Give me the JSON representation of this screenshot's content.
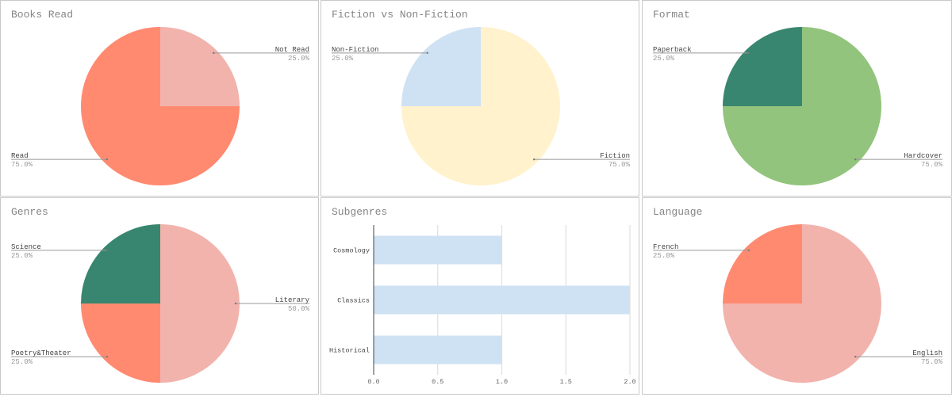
{
  "colors": {
    "salmon": "#ff8a70",
    "pink": "#f2b3ad",
    "blue": "#cfe2f3",
    "cream": "#fff2cc",
    "green": "#93c47d",
    "teal": "#38866f"
  },
  "chart_data": [
    {
      "type": "pie",
      "title": "Books Read",
      "slices": [
        {
          "label": "Not Read",
          "value": 25.0,
          "pct": "25.0%",
          "color": "#f2b3ad"
        },
        {
          "label": "Read",
          "value": 75.0,
          "pct": "75.0%",
          "color": "#ff8a70"
        }
      ]
    },
    {
      "type": "pie",
      "title": "Fiction vs Non-Fiction",
      "slices": [
        {
          "label": "Fiction",
          "value": 75.0,
          "pct": "75.0%",
          "color": "#fff2cc"
        },
        {
          "label": "Non-Fiction",
          "value": 25.0,
          "pct": "25.0%",
          "color": "#cfe2f3"
        }
      ]
    },
    {
      "type": "pie",
      "title": "Format",
      "slices": [
        {
          "label": "Hardcover",
          "value": 75.0,
          "pct": "75.0%",
          "color": "#93c47d"
        },
        {
          "label": "Paperback",
          "value": 25.0,
          "pct": "25.0%",
          "color": "#38866f"
        }
      ]
    },
    {
      "type": "pie",
      "title": "Genres",
      "slices": [
        {
          "label": "Literary",
          "value": 50.0,
          "pct": "50.0%",
          "color": "#f2b3ad"
        },
        {
          "label": "Poetry&Theater",
          "value": 25.0,
          "pct": "25.0%",
          "color": "#ff8a70"
        },
        {
          "label": "Science",
          "value": 25.0,
          "pct": "25.0%",
          "color": "#38866f"
        }
      ]
    },
    {
      "type": "bar",
      "orientation": "horizontal",
      "title": "Subgenres",
      "categories": [
        "Cosmology",
        "Classics",
        "Historical"
      ],
      "values": [
        1,
        2,
        1
      ],
      "xlim": [
        0,
        2
      ],
      "xticks": [
        "0.0",
        "0.5",
        "1.0",
        "1.5",
        "2.0"
      ],
      "color": "#cfe2f3",
      "grid": true
    },
    {
      "type": "pie",
      "title": "Language",
      "slices": [
        {
          "label": "English",
          "value": 75.0,
          "pct": "75.0%",
          "color": "#f2b3ad"
        },
        {
          "label": "French",
          "value": 25.0,
          "pct": "25.0%",
          "color": "#ff8a70"
        }
      ]
    }
  ]
}
